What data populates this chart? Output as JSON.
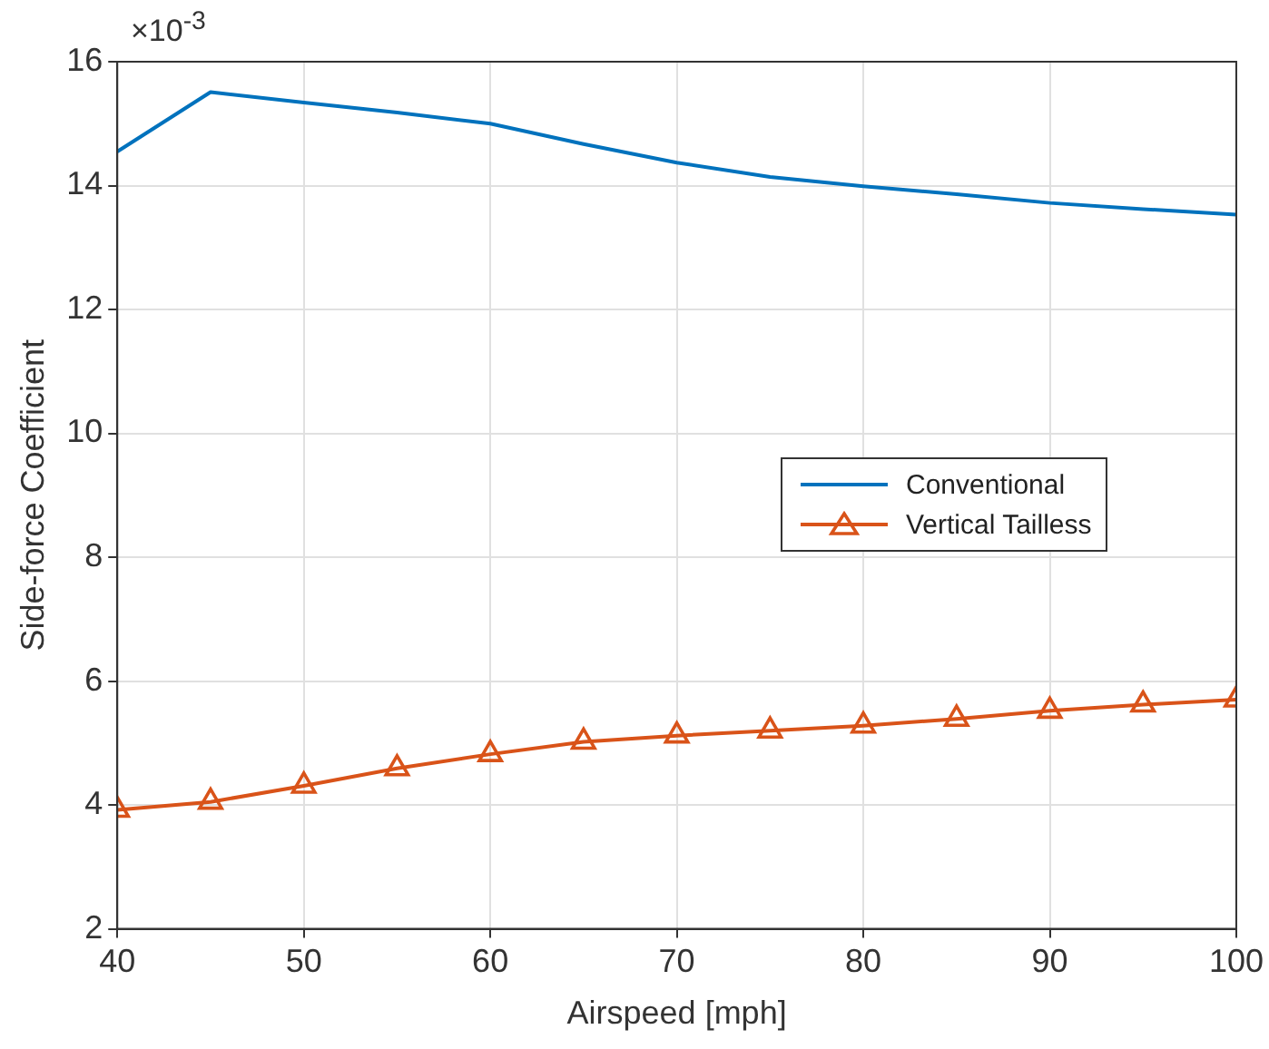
{
  "chart_data": {
    "type": "line",
    "xlabel": "Airspeed [mph]",
    "ylabel": "Side-force Coefficient",
    "annotations": [
      "×10$^{-3}$"
    ],
    "x": [
      40,
      45,
      50,
      55,
      60,
      65,
      70,
      75,
      80,
      85,
      90,
      95,
      100
    ],
    "series": [
      {
        "name": "Conventional",
        "color": "#0072bd",
        "marker": "none",
        "values": [
          14.55,
          15.51,
          15.34,
          15.18,
          15.0,
          14.67,
          14.37,
          14.14,
          13.99,
          13.86,
          13.72,
          13.62,
          13.53
        ]
      },
      {
        "name": "Vertical Tailless",
        "color": "#d95319",
        "marker": "triangle",
        "values": [
          3.92,
          4.05,
          4.31,
          4.59,
          4.82,
          5.02,
          5.12,
          5.2,
          5.28,
          5.39,
          5.52,
          5.62,
          5.7
        ]
      }
    ],
    "xlim": [
      40,
      100
    ],
    "xticks": [
      40,
      50,
      60,
      70,
      80,
      90,
      100
    ],
    "ylim": [
      2,
      16
    ],
    "yticks": [
      2,
      4,
      6,
      8,
      10,
      12,
      14,
      16
    ],
    "grid": true,
    "legend": "right",
    "line_style": "solid"
  }
}
